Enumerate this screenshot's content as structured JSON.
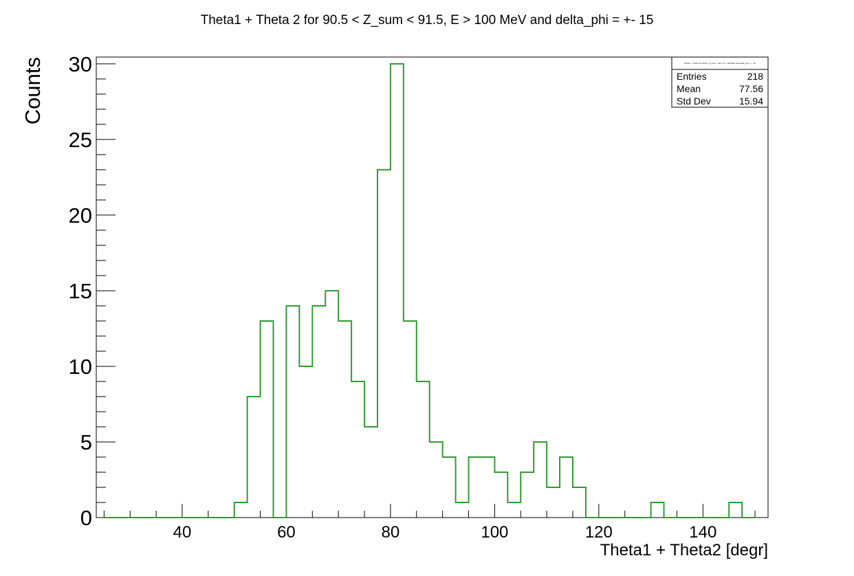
{
  "chart_data": {
    "type": "histogram",
    "title": "Theta1 +  Theta 2 for 90.5 < Z_sum < 91.5, E > 100 MeV and delta_phi = +- 15",
    "xlabel": "Theta1 + Theta2 [degr]",
    "ylabel": "Counts",
    "xlim": [
      23.5,
      152.5
    ],
    "ylim": [
      0,
      30.45
    ],
    "x_ticks": [
      40,
      60,
      80,
      100,
      120,
      140
    ],
    "y_ticks": [
      0,
      5,
      10,
      15,
      20,
      25,
      30
    ],
    "grid": false,
    "line_color": "#339933",
    "bin_edges": [
      25.0,
      27.5,
      30.0,
      32.5,
      35.0,
      37.5,
      40.0,
      42.5,
      45.0,
      47.5,
      50.0,
      52.5,
      55.0,
      57.5,
      60.0,
      62.5,
      65.0,
      67.5,
      70.0,
      72.5,
      75.0,
      77.5,
      80.0,
      82.5,
      85.0,
      87.5,
      90.0,
      92.5,
      95.0,
      97.5,
      100.0,
      102.5,
      105.0,
      107.5,
      110.0,
      112.5,
      115.0,
      117.5,
      120.0,
      122.5,
      125.0,
      127.5,
      130.0,
      132.5,
      135.0,
      137.5,
      140.0,
      142.5,
      145.0,
      147.5,
      150.0
    ],
    "values": [
      0,
      0,
      0,
      0,
      0,
      0,
      0,
      0,
      0,
      0,
      1,
      8,
      13,
      0,
      14,
      10,
      14,
      15,
      13,
      9,
      6,
      23,
      30,
      13,
      9,
      5,
      4,
      1,
      4,
      4,
      3,
      1,
      3,
      5,
      2,
      4,
      2,
      0,
      0,
      0,
      0,
      0,
      1,
      0,
      0,
      0,
      0,
      0,
      1,
      0
    ],
    "stats": {
      "name": "theta1 +  Theta 2 for 90.5 < Z_sum < 91.5, E > 100 MeV and delta_phi = +- 15",
      "rows": [
        {
          "label": "Entries",
          "value": "218"
        },
        {
          "label": "Mean",
          "value": "77.56"
        },
        {
          "label": "Std Dev",
          "value": "15.94"
        }
      ]
    }
  }
}
